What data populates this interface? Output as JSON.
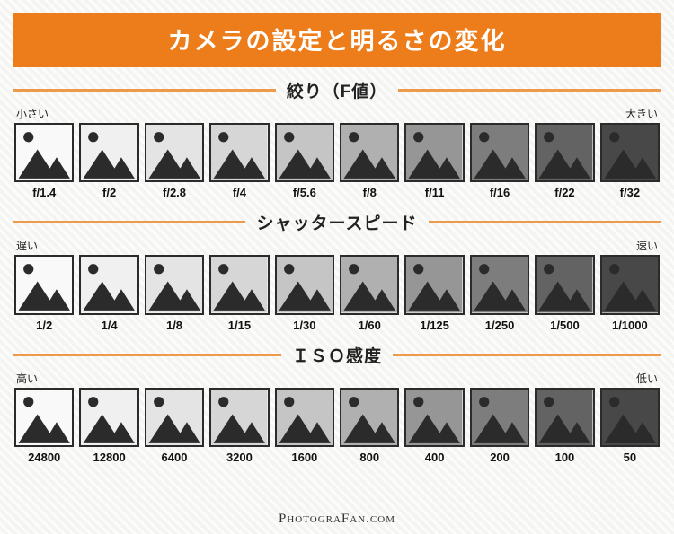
{
  "title": "カメラの設定と明るさの変化",
  "credit": "PhotograFan.com",
  "accent_color": "#ed7d1a",
  "rule_color": "#ed9a4d",
  "icon_fg": "#2b2b2b",
  "brightness_scale": [
    "#f9f9f9",
    "#f0f0f0",
    "#e4e4e4",
    "#d6d6d6",
    "#c5c5c5",
    "#b0b0b0",
    "#969696",
    "#7d7d7d",
    "#636363",
    "#484848"
  ],
  "sections": [
    {
      "heading": "絞り（F値）",
      "left_label": "小さい",
      "right_label": "大きい",
      "values": [
        "f/1.4",
        "f/2",
        "f/2.8",
        "f/4",
        "f/5.6",
        "f/8",
        "f/11",
        "f/16",
        "f/22",
        "f/32"
      ]
    },
    {
      "heading": "シャッタースピード",
      "left_label": "遅い",
      "right_label": "速い",
      "values": [
        "1/2",
        "1/4",
        "1/8",
        "1/15",
        "1/30",
        "1/60",
        "1/125",
        "1/250",
        "1/500",
        "1/1000"
      ]
    },
    {
      "heading": "ＩＳＯ感度",
      "left_label": "高い",
      "right_label": "低い",
      "values": [
        "24800",
        "12800",
        "6400",
        "3200",
        "1600",
        "800",
        "400",
        "200",
        "100",
        "50"
      ]
    }
  ]
}
